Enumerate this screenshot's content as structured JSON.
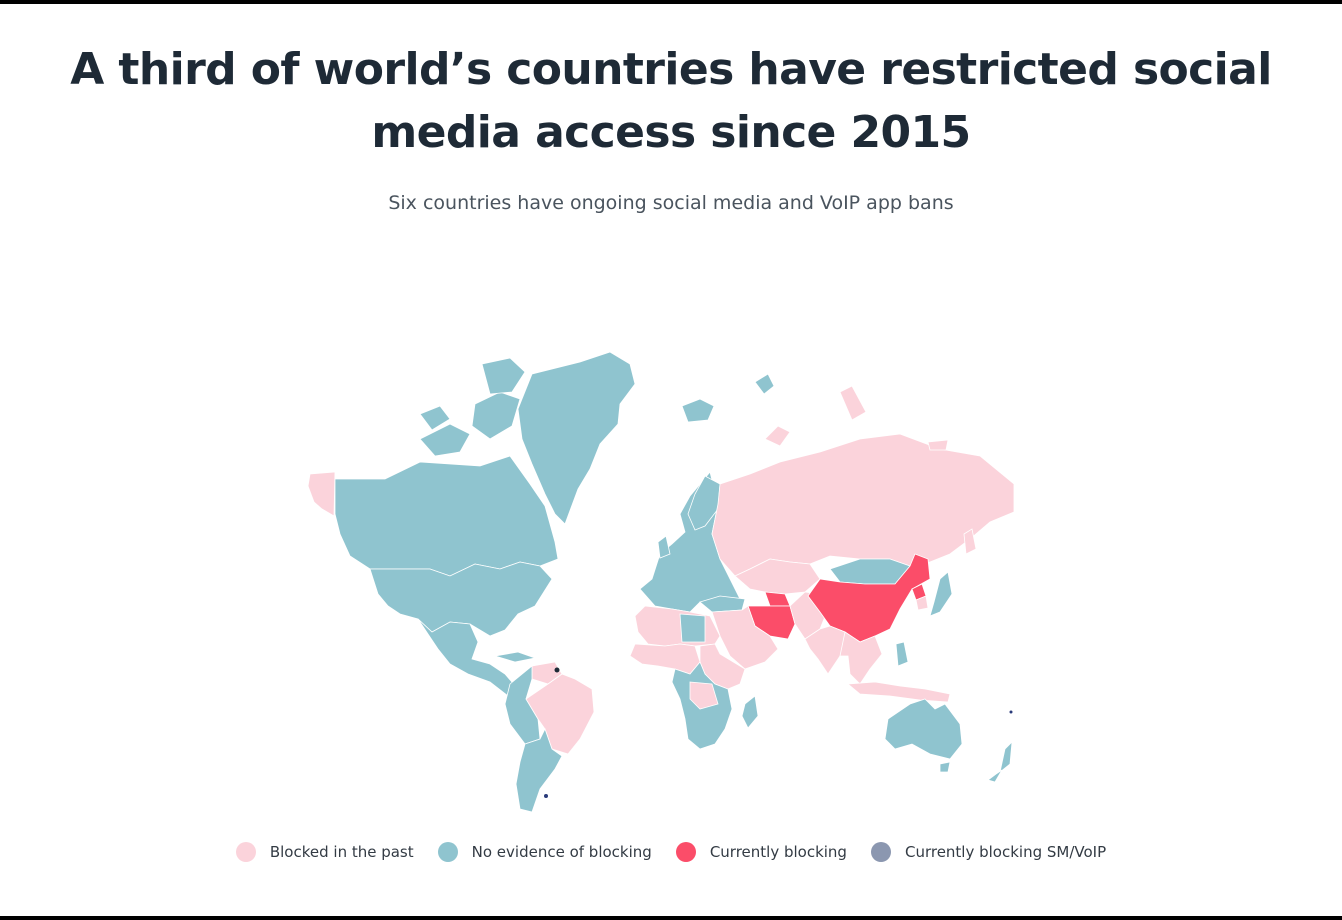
{
  "title": "A third of world’s countries have restricted social media access since 2015",
  "subtitle": "Six countries have ongoing social media and VoIP app bans",
  "legend": [
    {
      "label": "Blocked in the past",
      "color": "#fbd3db"
    },
    {
      "label": "No evidence of blocking",
      "color": "#8fc4cf"
    },
    {
      "label": "Currently blocking",
      "color": "#fb4d69"
    },
    {
      "label": "Currently blocking SM/VoIP",
      "color": "#8b97b0"
    }
  ],
  "regions": [
    {
      "name": "Alaska",
      "status": "Blocked in the past"
    },
    {
      "name": "Canada",
      "status": "No evidence of blocking"
    },
    {
      "name": "Greenland",
      "status": "No evidence of blocking"
    },
    {
      "name": "United States",
      "status": "No evidence of blocking"
    },
    {
      "name": "Mexico",
      "status": "No evidence of blocking"
    },
    {
      "name": "Venezuela",
      "status": "Blocked in the past"
    },
    {
      "name": "Brazil",
      "status": "Blocked in the past"
    },
    {
      "name": "South America (other)",
      "status": "No evidence of blocking"
    },
    {
      "name": "Iceland",
      "status": "No evidence of blocking"
    },
    {
      "name": "Europe",
      "status": "No evidence of blocking"
    },
    {
      "name": "Russia",
      "status": "Blocked in the past"
    },
    {
      "name": "Central Asia",
      "status": "Blocked in the past"
    },
    {
      "name": "Mongolia",
      "status": "No evidence of blocking"
    },
    {
      "name": "China",
      "status": "Currently blocking"
    },
    {
      "name": "North Korea",
      "status": "Currently blocking"
    },
    {
      "name": "Iran",
      "status": "Currently blocking"
    },
    {
      "name": "Turkmenistan",
      "status": "Currently blocking"
    },
    {
      "name": "Middle East",
      "status": "Blocked in the past"
    },
    {
      "name": "India",
      "status": "Blocked in the past"
    },
    {
      "name": "Southeast Asia",
      "status": "Blocked in the past"
    },
    {
      "name": "Japan",
      "status": "No evidence of blocking"
    },
    {
      "name": "North Africa",
      "status": "Blocked in the past"
    },
    {
      "name": "West Africa",
      "status": "Blocked in the past"
    },
    {
      "name": "Central/Southern Africa",
      "status": "No evidence of blocking"
    },
    {
      "name": "East Africa",
      "status": "Blocked in the past"
    },
    {
      "name": "Australia",
      "status": "No evidence of blocking"
    },
    {
      "name": "New Zealand",
      "status": "No evidence of blocking"
    }
  ]
}
